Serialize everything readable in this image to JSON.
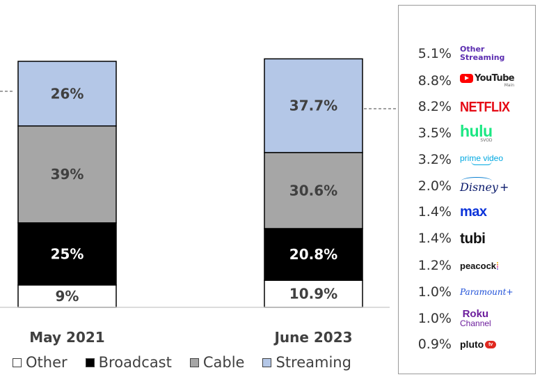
{
  "colors": {
    "Other": "#ffffff",
    "Broadcast": "#000000",
    "Cable": "#a6a6a6",
    "Streaming": "#b4c7e7",
    "outline": "#000000"
  },
  "chart_data": {
    "type": "bar",
    "stacked": true,
    "categories": [
      "May 2021",
      "June 2023"
    ],
    "series": [
      {
        "name": "Other",
        "values": [
          9,
          10.9
        ],
        "labels": [
          "9%",
          "10.9%"
        ]
      },
      {
        "name": "Broadcast",
        "values": [
          25,
          20.8
        ],
        "labels": [
          "25%",
          "20.8%"
        ]
      },
      {
        "name": "Cable",
        "values": [
          39,
          30.6
        ],
        "labels": [
          "39%",
          "30.6%"
        ]
      },
      {
        "name": "Streaming",
        "values": [
          26,
          37.7
        ],
        "labels": [
          "26%",
          "37.7%"
        ]
      }
    ],
    "ylim": [
      0,
      100
    ],
    "grid": false,
    "legend_position": "bottom"
  },
  "legend": {
    "items": [
      {
        "key": "Other",
        "label": "Other"
      },
      {
        "key": "Broadcast",
        "label": "Broadcast"
      },
      {
        "key": "Cable",
        "label": "Cable"
      },
      {
        "key": "Streaming",
        "label": "Streaming"
      }
    ]
  },
  "streaming_breakdown": [
    {
      "value": "5.1%",
      "service": "Other Streaming",
      "logo": "other",
      "logo_lines": [
        "Other",
        "Streaming"
      ]
    },
    {
      "value": "8.8%",
      "service": "YouTube",
      "logo": "youtube",
      "logo_text": "YouTube",
      "logo_sub": "Main"
    },
    {
      "value": "8.2%",
      "service": "Netflix",
      "logo": "netflix",
      "logo_text": "NETFLIX"
    },
    {
      "value": "3.5%",
      "service": "Hulu",
      "logo": "hulu",
      "logo_text": "hulu",
      "logo_sub": "SVOD"
    },
    {
      "value": "3.2%",
      "service": "Prime Video",
      "logo": "prime",
      "logo_text": "prime video"
    },
    {
      "value": "2.0%",
      "service": "Disney+",
      "logo": "disney",
      "logo_text": "Disney",
      "logo_plus": "+"
    },
    {
      "value": "1.4%",
      "service": "Max",
      "logo": "max",
      "logo_text": "max"
    },
    {
      "value": "1.4%",
      "service": "Tubi",
      "logo": "tubi",
      "logo_text": "tubi"
    },
    {
      "value": "1.2%",
      "service": "Peacock",
      "logo": "peacock",
      "logo_text": "peacock"
    },
    {
      "value": "1.0%",
      "service": "Paramount+",
      "logo": "paramount",
      "logo_text": "Paramount+"
    },
    {
      "value": "1.0%",
      "service": "Roku Channel",
      "logo": "roku",
      "logo_text": "Roku",
      "logo_sub": "Channel"
    },
    {
      "value": "0.9%",
      "service": "Pluto TV",
      "logo": "pluto",
      "logo_text": "pluto",
      "logo_tv": "tv"
    }
  ]
}
